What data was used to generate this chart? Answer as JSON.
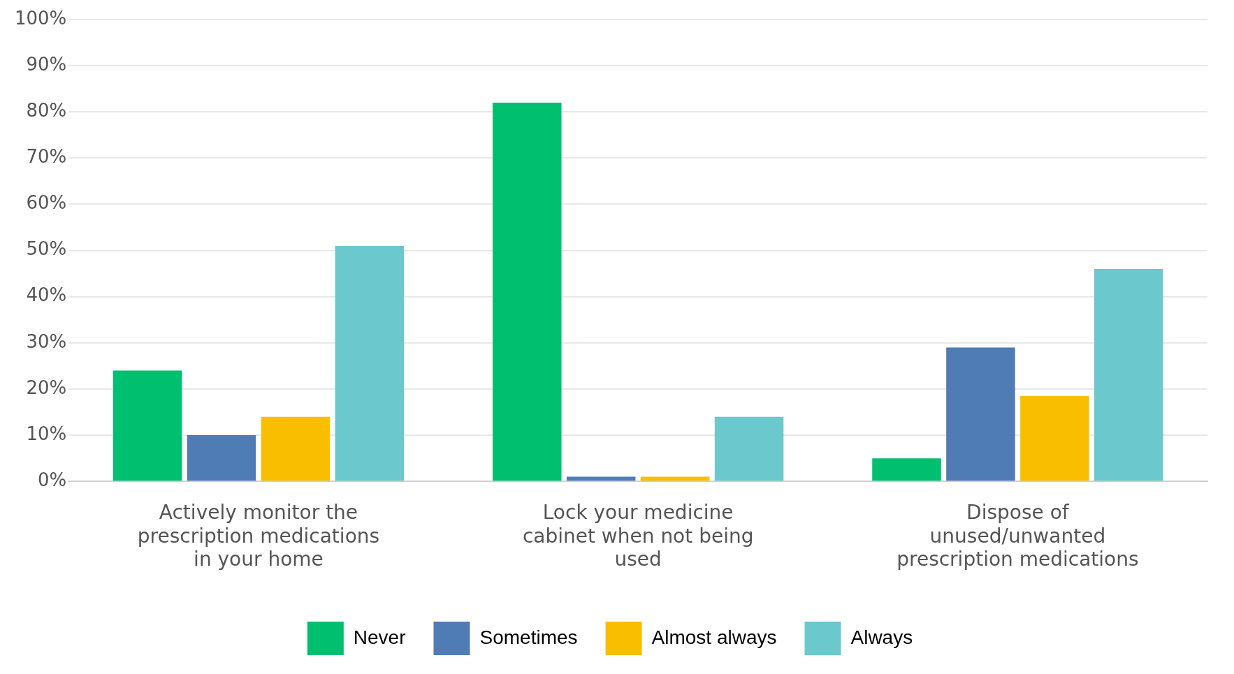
{
  "chart_data": {
    "type": "bar",
    "categories": [
      "Actively monitor the prescription medications in your home",
      "Lock your medicine cabinet when not being used",
      "Dispose of unused/unwanted prescription medications"
    ],
    "series": [
      {
        "name": "Never",
        "color": "#00bf6f",
        "values": [
          24,
          82,
          5
        ]
      },
      {
        "name": "Sometimes",
        "color": "#507cb6",
        "values": [
          10,
          1,
          29
        ]
      },
      {
        "name": "Almost always",
        "color": "#f9be00",
        "values": [
          14,
          1,
          18.5
        ]
      },
      {
        "name": "Always",
        "color": "#6bc8cd",
        "values": [
          51,
          14,
          46
        ]
      }
    ],
    "ylim": [
      0,
      100
    ],
    "yticks": [
      {
        "value": 0,
        "label": "0%"
      },
      {
        "value": 10,
        "label": "10%"
      },
      {
        "value": 20,
        "label": "20%"
      },
      {
        "value": 30,
        "label": "30%"
      },
      {
        "value": 40,
        "label": "40%"
      },
      {
        "value": 50,
        "label": "50%"
      },
      {
        "value": 60,
        "label": "60%"
      },
      {
        "value": 70,
        "label": "70%"
      },
      {
        "value": 80,
        "label": "80%"
      },
      {
        "value": 90,
        "label": "90%"
      },
      {
        "value": 100,
        "label": "100%"
      }
    ],
    "grid": "y",
    "legend": "bottom"
  }
}
